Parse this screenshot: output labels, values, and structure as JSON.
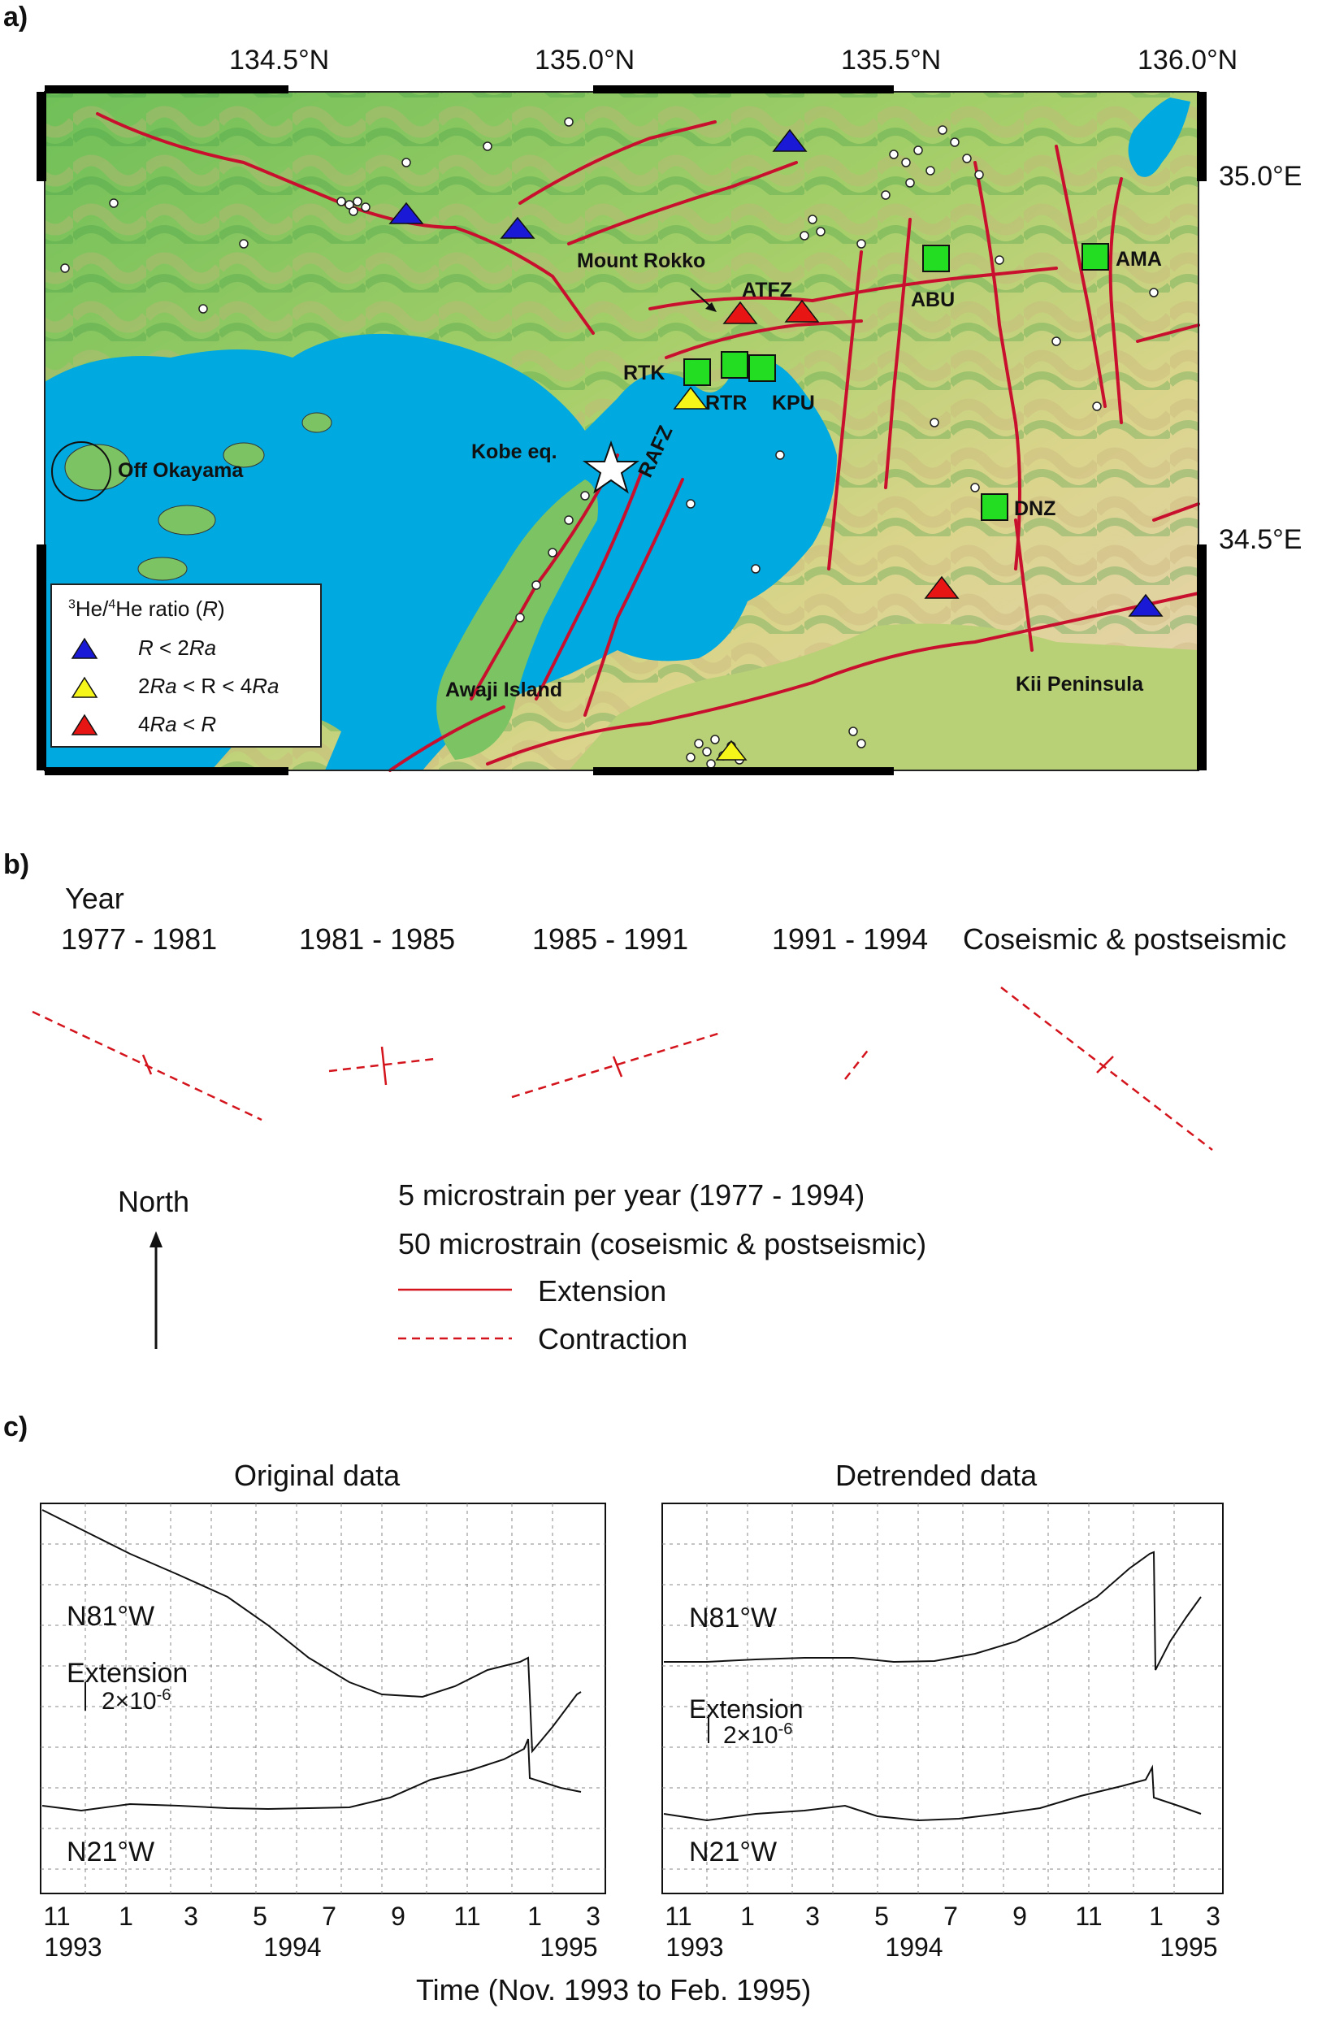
{
  "panel_a": {
    "label": "a)",
    "lon_labels": [
      "134.5°N",
      "135.0°N",
      "135.5°N",
      "136.0°N"
    ],
    "lat_labels": [
      "35.0°E",
      "34.5°E"
    ],
    "places": {
      "mount_rokko": "Mount Rokko",
      "atfz": "ATFZ",
      "abu": "ABU",
      "ama": "AMA",
      "rtk": "RTK",
      "rtr": "RTR",
      "kpu": "KPU",
      "kobe": "Kobe eq.",
      "rafz": "RAFZ",
      "off_okayama": "Off Okayama",
      "dnz": "DNZ",
      "awaji": "Awaji Island",
      "kii": "Kii Peninsula"
    },
    "legend": {
      "title_pre": "3",
      "title_mid": "He/",
      "title_sup2": "4",
      "title_post": "He ratio (",
      "title_r": "R",
      "title_end": ")",
      "items": [
        {
          "text_a": "R",
          "text_b": " < 2",
          "text_c": "Ra",
          "text_d": "",
          "color": "#1a1ad6"
        },
        {
          "text_a": "2",
          "text_b": "Ra",
          "text_c": " < R < 4",
          "text_d": "Ra",
          "color": "#f5f51a"
        },
        {
          "text_a": "4",
          "text_b": "Ra",
          "text_c": " < ",
          "text_d": "R",
          "color": "#e81515"
        }
      ]
    },
    "colors": {
      "sea": "#00a9e0",
      "land_low": "#54b754",
      "fault": "#c8102e",
      "square": "#22dd22"
    }
  },
  "panel_b": {
    "label": "b)",
    "year_heading": "Year",
    "periods": [
      "1977 - 1981",
      "1981 - 1985",
      "1985 - 1991",
      "1991 - 1994",
      "Coseismic & postseismic"
    ],
    "north": "North",
    "scale1": "5 microstrain per year (1977 - 1994)",
    "scale2": "50 microstrain (coseismic & postseismic)",
    "extension": "Extension",
    "contraction": "Contraction"
  },
  "panel_c": {
    "label": "c)",
    "left_title": "Original data",
    "right_title": "Detrended data",
    "n81": "N81°W",
    "n21": "N21°W",
    "extension": "Extension",
    "scale_base": "2×10",
    "scale_exp": "-6",
    "x_ticks": [
      "11",
      "1",
      "3",
      "5",
      "7",
      "9",
      "11",
      "1",
      "3"
    ],
    "years": [
      "1993",
      "1994",
      "1995"
    ],
    "xlabel": "Time (Nov. 1993 to Feb. 1995)"
  }
}
